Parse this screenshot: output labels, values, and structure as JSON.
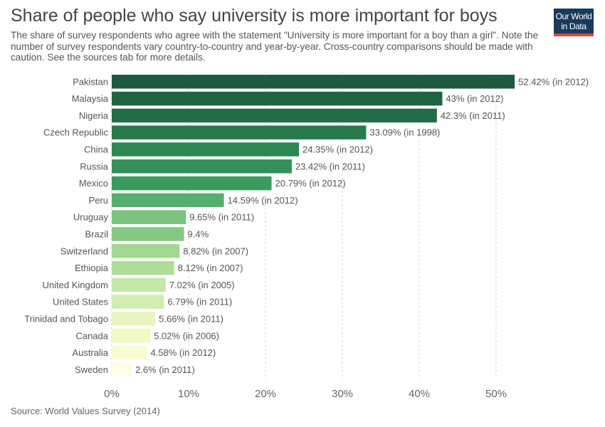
{
  "header": {
    "title": "Share of people who say university is more important for boys",
    "subtitle": "The share of survey respondents who agree with the statement \"University is more important for a boy than a girl\". Note the number of survey respondents vary country-to-country and year-by-year. Cross-country comparisons should be made with caution. See the sources tab for more details."
  },
  "logo": {
    "line1": "Our World",
    "line2": "in Data",
    "bg_color": "#1a3a5a",
    "accent_color": "#d94a38"
  },
  "footer": {
    "source": "Source: World Values Survey (2014)"
  },
  "chart_data": {
    "type": "bar",
    "orientation": "horizontal",
    "categories": [
      "Pakistan",
      "Malaysia",
      "Nigeria",
      "Czech Republic",
      "China",
      "Russia",
      "Mexico",
      "Peru",
      "Uruguay",
      "Brazil",
      "Switzerland",
      "Ethiopia",
      "United Kingdom",
      "United States",
      "Trinidad and Tobago",
      "Canada",
      "Australia",
      "Sweden"
    ],
    "values": [
      52.42,
      43,
      42.3,
      33.09,
      24.35,
      23.42,
      20.79,
      14.59,
      9.65,
      9.4,
      8.82,
      8.12,
      7.02,
      6.79,
      5.66,
      5.02,
      4.58,
      2.6
    ],
    "data_labels": [
      "52.42% (in 2012)",
      "43% (in 2012)",
      "42.3% (in 2011)",
      "33.09% (in 1998)",
      "24.35% (in 2012)",
      "23.42% (in 2011)",
      "20.79% (in 2012)",
      "14.59% (in 2012)",
      "9.65% (in 2011)",
      "9.4%",
      "8.82% (in 2007)",
      "8.12% (in 2007)",
      "7.02% (in 2005)",
      "6.79% (in 2011)",
      "5.66% (in 2011)",
      "5.02% (in 2006)",
      "4.58% (in 2012)",
      "2.6% (in 2011)"
    ],
    "colors": [
      "#1e5a3e",
      "#1e6442",
      "#226c47",
      "#267a4c",
      "#2d8753",
      "#33905a",
      "#3c9a5e",
      "#56b06d",
      "#79c27f",
      "#85c884",
      "#a4d694",
      "#b0dc9a",
      "#c6e7a8",
      "#d2ecb0",
      "#e9f4bf",
      "#f2f8c6",
      "#f8fbd2",
      "#fefee6"
    ],
    "xlim": [
      0,
      55
    ],
    "x_ticks": [
      0,
      10,
      20,
      30,
      40,
      50
    ],
    "x_tick_labels": [
      "0%",
      "10%",
      "20%",
      "30%",
      "40%",
      "50%"
    ],
    "grid": "vertical dashed"
  }
}
